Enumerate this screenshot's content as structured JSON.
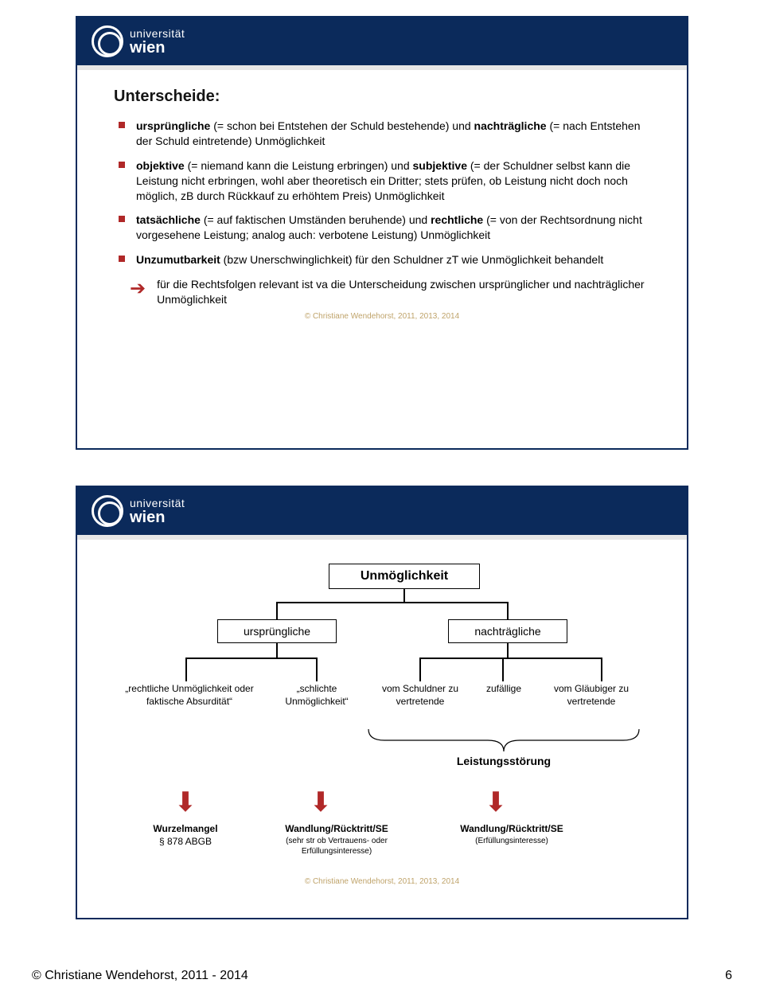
{
  "logo": {
    "line1": "universität",
    "line2": "wien"
  },
  "slide1": {
    "title": "Unterscheide:",
    "bullets": [
      {
        "html": "<span class='b'>ursprüngliche</span> (= schon bei Entstehen der Schuld bestehende) und <span class='b'>nachträgliche</span> (= nach Entstehen der Schuld eintretende) Unmöglichkeit"
      },
      {
        "html": "<span class='b'>objektive</span> (= niemand kann die Leistung erbringen) und <span class='b'>subjektive</span> (= der Schuldner selbst kann die Leistung nicht erbringen, wohl aber theoretisch ein Dritter; stets prüfen, ob Leistung nicht doch noch möglich, zB durch Rückkauf zu erhöhtem Preis) Unmöglichkeit"
      },
      {
        "html": "<span class='b'>tatsächliche</span> (= auf faktischen Umständen beruhende) und <span class='b'>rechtliche</span> (= von der Rechtsordnung nicht vorgesehene Leistung; analog auch: verbotene Leistung) Unmöglichkeit"
      },
      {
        "html": "<span class='b'>Unzumutbarkeit</span> (bzw Unerschwinglichkeit) für den Schuldner zT wie Unmöglichkeit behandelt"
      }
    ],
    "note": "für die Rechtsfolgen relevant ist va die Unterscheidung zwischen ursprünglicher und nachträglicher Unmöglichkeit",
    "copyright": "© Christiane Wendehorst, 2011, 2013, 2014"
  },
  "slide2": {
    "top": "Unmöglichkeit",
    "mid": {
      "left": "ursprüngliche",
      "right": "nachträgliche"
    },
    "row3": {
      "c1": "„rechtliche Unmöglichkeit oder faktische Absurdität“",
      "c2": "„schlichte Unmöglichkeit“",
      "c3": "vom Schuldner zu vertretende",
      "c4": "zufällige",
      "c5": "vom Gläubiger zu vertretende"
    },
    "ls": "Leistungsstörung",
    "row5": {
      "c1": {
        "t": "Wurzelmangel",
        "s": "§ 878 ABGB"
      },
      "c2": {
        "t": "Wandlung/Rücktritt/SE",
        "s": "(sehr str ob Vertrauens- oder Erfüllungsinteresse)"
      },
      "c3": {
        "t": "Wandlung/Rücktritt/SE",
        "s": "(Erfüllungsinteresse)"
      }
    },
    "copyright": "© Christiane Wendehorst, 2011, 2013, 2014"
  },
  "footer": {
    "text": "© Christiane Wendehorst, 2011 - 2014",
    "page": "6"
  },
  "colors": {
    "navy": "#0b2a5b",
    "red": "#b02828",
    "gold": "#bfa36a"
  }
}
